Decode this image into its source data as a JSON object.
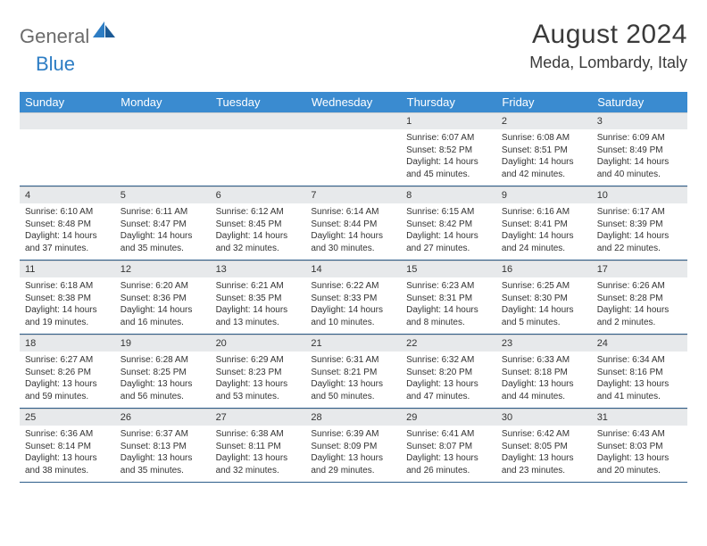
{
  "logo": {
    "text_general": "General",
    "text_blue": "Blue"
  },
  "header": {
    "month_title": "August 2024",
    "location": "Meda, Lombardy, Italy"
  },
  "colors": {
    "header_bar": "#3a8bd0",
    "logo_blue": "#2d7dc4",
    "logo_gray": "#6b6b6b",
    "daynum_bg": "#e7e9eb",
    "row_divider": "#2d5d8a"
  },
  "days_of_week": [
    "Sunday",
    "Monday",
    "Tuesday",
    "Wednesday",
    "Thursday",
    "Friday",
    "Saturday"
  ],
  "weeks": [
    [
      {
        "num": "",
        "sunrise": "",
        "sunset": "",
        "daylight_l1": "",
        "daylight_l2": ""
      },
      {
        "num": "",
        "sunrise": "",
        "sunset": "",
        "daylight_l1": "",
        "daylight_l2": ""
      },
      {
        "num": "",
        "sunrise": "",
        "sunset": "",
        "daylight_l1": "",
        "daylight_l2": ""
      },
      {
        "num": "",
        "sunrise": "",
        "sunset": "",
        "daylight_l1": "",
        "daylight_l2": ""
      },
      {
        "num": "1",
        "sunrise": "Sunrise: 6:07 AM",
        "sunset": "Sunset: 8:52 PM",
        "daylight_l1": "Daylight: 14 hours",
        "daylight_l2": "and 45 minutes."
      },
      {
        "num": "2",
        "sunrise": "Sunrise: 6:08 AM",
        "sunset": "Sunset: 8:51 PM",
        "daylight_l1": "Daylight: 14 hours",
        "daylight_l2": "and 42 minutes."
      },
      {
        "num": "3",
        "sunrise": "Sunrise: 6:09 AM",
        "sunset": "Sunset: 8:49 PM",
        "daylight_l1": "Daylight: 14 hours",
        "daylight_l2": "and 40 minutes."
      }
    ],
    [
      {
        "num": "4",
        "sunrise": "Sunrise: 6:10 AM",
        "sunset": "Sunset: 8:48 PM",
        "daylight_l1": "Daylight: 14 hours",
        "daylight_l2": "and 37 minutes."
      },
      {
        "num": "5",
        "sunrise": "Sunrise: 6:11 AM",
        "sunset": "Sunset: 8:47 PM",
        "daylight_l1": "Daylight: 14 hours",
        "daylight_l2": "and 35 minutes."
      },
      {
        "num": "6",
        "sunrise": "Sunrise: 6:12 AM",
        "sunset": "Sunset: 8:45 PM",
        "daylight_l1": "Daylight: 14 hours",
        "daylight_l2": "and 32 minutes."
      },
      {
        "num": "7",
        "sunrise": "Sunrise: 6:14 AM",
        "sunset": "Sunset: 8:44 PM",
        "daylight_l1": "Daylight: 14 hours",
        "daylight_l2": "and 30 minutes."
      },
      {
        "num": "8",
        "sunrise": "Sunrise: 6:15 AM",
        "sunset": "Sunset: 8:42 PM",
        "daylight_l1": "Daylight: 14 hours",
        "daylight_l2": "and 27 minutes."
      },
      {
        "num": "9",
        "sunrise": "Sunrise: 6:16 AM",
        "sunset": "Sunset: 8:41 PM",
        "daylight_l1": "Daylight: 14 hours",
        "daylight_l2": "and 24 minutes."
      },
      {
        "num": "10",
        "sunrise": "Sunrise: 6:17 AM",
        "sunset": "Sunset: 8:39 PM",
        "daylight_l1": "Daylight: 14 hours",
        "daylight_l2": "and 22 minutes."
      }
    ],
    [
      {
        "num": "11",
        "sunrise": "Sunrise: 6:18 AM",
        "sunset": "Sunset: 8:38 PM",
        "daylight_l1": "Daylight: 14 hours",
        "daylight_l2": "and 19 minutes."
      },
      {
        "num": "12",
        "sunrise": "Sunrise: 6:20 AM",
        "sunset": "Sunset: 8:36 PM",
        "daylight_l1": "Daylight: 14 hours",
        "daylight_l2": "and 16 minutes."
      },
      {
        "num": "13",
        "sunrise": "Sunrise: 6:21 AM",
        "sunset": "Sunset: 8:35 PM",
        "daylight_l1": "Daylight: 14 hours",
        "daylight_l2": "and 13 minutes."
      },
      {
        "num": "14",
        "sunrise": "Sunrise: 6:22 AM",
        "sunset": "Sunset: 8:33 PM",
        "daylight_l1": "Daylight: 14 hours",
        "daylight_l2": "and 10 minutes."
      },
      {
        "num": "15",
        "sunrise": "Sunrise: 6:23 AM",
        "sunset": "Sunset: 8:31 PM",
        "daylight_l1": "Daylight: 14 hours",
        "daylight_l2": "and 8 minutes."
      },
      {
        "num": "16",
        "sunrise": "Sunrise: 6:25 AM",
        "sunset": "Sunset: 8:30 PM",
        "daylight_l1": "Daylight: 14 hours",
        "daylight_l2": "and 5 minutes."
      },
      {
        "num": "17",
        "sunrise": "Sunrise: 6:26 AM",
        "sunset": "Sunset: 8:28 PM",
        "daylight_l1": "Daylight: 14 hours",
        "daylight_l2": "and 2 minutes."
      }
    ],
    [
      {
        "num": "18",
        "sunrise": "Sunrise: 6:27 AM",
        "sunset": "Sunset: 8:26 PM",
        "daylight_l1": "Daylight: 13 hours",
        "daylight_l2": "and 59 minutes."
      },
      {
        "num": "19",
        "sunrise": "Sunrise: 6:28 AM",
        "sunset": "Sunset: 8:25 PM",
        "daylight_l1": "Daylight: 13 hours",
        "daylight_l2": "and 56 minutes."
      },
      {
        "num": "20",
        "sunrise": "Sunrise: 6:29 AM",
        "sunset": "Sunset: 8:23 PM",
        "daylight_l1": "Daylight: 13 hours",
        "daylight_l2": "and 53 minutes."
      },
      {
        "num": "21",
        "sunrise": "Sunrise: 6:31 AM",
        "sunset": "Sunset: 8:21 PM",
        "daylight_l1": "Daylight: 13 hours",
        "daylight_l2": "and 50 minutes."
      },
      {
        "num": "22",
        "sunrise": "Sunrise: 6:32 AM",
        "sunset": "Sunset: 8:20 PM",
        "daylight_l1": "Daylight: 13 hours",
        "daylight_l2": "and 47 minutes."
      },
      {
        "num": "23",
        "sunrise": "Sunrise: 6:33 AM",
        "sunset": "Sunset: 8:18 PM",
        "daylight_l1": "Daylight: 13 hours",
        "daylight_l2": "and 44 minutes."
      },
      {
        "num": "24",
        "sunrise": "Sunrise: 6:34 AM",
        "sunset": "Sunset: 8:16 PM",
        "daylight_l1": "Daylight: 13 hours",
        "daylight_l2": "and 41 minutes."
      }
    ],
    [
      {
        "num": "25",
        "sunrise": "Sunrise: 6:36 AM",
        "sunset": "Sunset: 8:14 PM",
        "daylight_l1": "Daylight: 13 hours",
        "daylight_l2": "and 38 minutes."
      },
      {
        "num": "26",
        "sunrise": "Sunrise: 6:37 AM",
        "sunset": "Sunset: 8:13 PM",
        "daylight_l1": "Daylight: 13 hours",
        "daylight_l2": "and 35 minutes."
      },
      {
        "num": "27",
        "sunrise": "Sunrise: 6:38 AM",
        "sunset": "Sunset: 8:11 PM",
        "daylight_l1": "Daylight: 13 hours",
        "daylight_l2": "and 32 minutes."
      },
      {
        "num": "28",
        "sunrise": "Sunrise: 6:39 AM",
        "sunset": "Sunset: 8:09 PM",
        "daylight_l1": "Daylight: 13 hours",
        "daylight_l2": "and 29 minutes."
      },
      {
        "num": "29",
        "sunrise": "Sunrise: 6:41 AM",
        "sunset": "Sunset: 8:07 PM",
        "daylight_l1": "Daylight: 13 hours",
        "daylight_l2": "and 26 minutes."
      },
      {
        "num": "30",
        "sunrise": "Sunrise: 6:42 AM",
        "sunset": "Sunset: 8:05 PM",
        "daylight_l1": "Daylight: 13 hours",
        "daylight_l2": "and 23 minutes."
      },
      {
        "num": "31",
        "sunrise": "Sunrise: 6:43 AM",
        "sunset": "Sunset: 8:03 PM",
        "daylight_l1": "Daylight: 13 hours",
        "daylight_l2": "and 20 minutes."
      }
    ]
  ]
}
